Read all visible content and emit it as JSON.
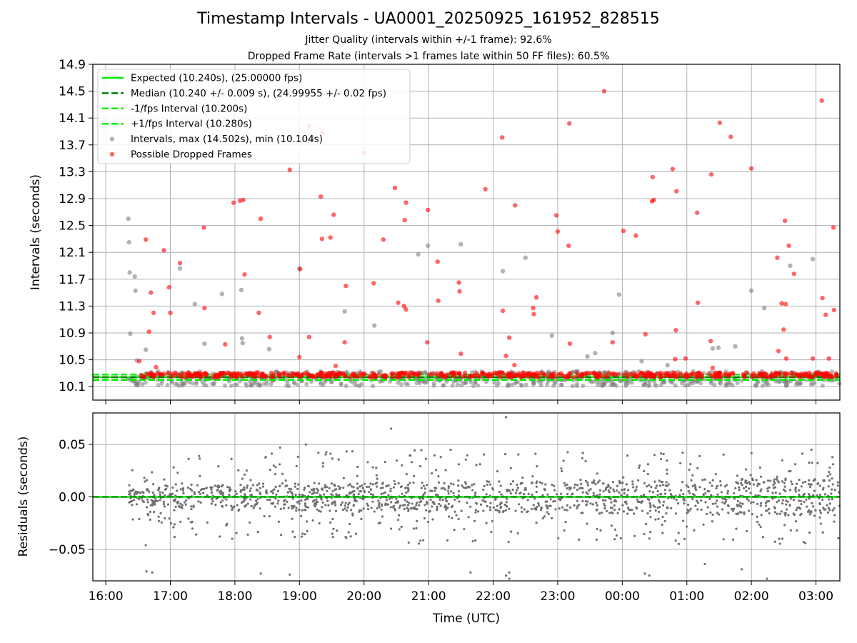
{
  "chart_data": [
    {
      "type": "scatter",
      "title": "Timestamp Intervals - UA0001_20250925_161952_828515",
      "subtitles": [
        "Jitter Quality (intervals within +/-1 frame): 92.6%",
        "Dropped Frame Rate (intervals >1 frames late within 50 FF files): 60.5%"
      ],
      "xlabel": "",
      "ylabel": "Intervals (seconds)",
      "xlim_hours": [
        15.8,
        27.37
      ],
      "ylim": [
        9.9,
        14.9
      ],
      "yticks": [
        "10.1",
        "10.5",
        "10.9",
        "11.3",
        "11.7",
        "12.1",
        "12.5",
        "12.9",
        "13.3",
        "13.7",
        "14.1",
        "14.5",
        "14.9"
      ],
      "grid": true,
      "legend_position": "top-left",
      "legend": [
        {
          "label": "Expected (10.240s), (25.00000 fps)",
          "style": "solid",
          "color": "#00ee00"
        },
        {
          "label": "Median (10.240 +/- 0.009 s), (24.99955 +/- 0.02 fps)",
          "style": "dashed",
          "color": "#007f00"
        },
        {
          "label": "-1/fps Interval (10.200s)",
          "style": "dashed",
          "color": "#00ee00"
        },
        {
          "label": "+1/fps Interval (10.280s)",
          "style": "dashed",
          "color": "#00ee00"
        },
        {
          "label": "Intervals, max (14.502s), min (10.104s)",
          "style": "marker",
          "color": "#808080"
        },
        {
          "label": "Possible Dropped Frames",
          "style": "marker",
          "color": "#ff0000"
        }
      ],
      "reference_lines": {
        "expected": 10.24,
        "median": 10.24,
        "minus_one": 10.2,
        "plus_one": 10.28
      },
      "series": [
        {
          "name": "Possible Dropped Frames",
          "color": "#ff0000",
          "x_hours": [
            16.52,
            16.62,
            16.67,
            16.7,
            16.74,
            16.78,
            16.9,
            16.98,
            17.0,
            17.15,
            17.52,
            17.53,
            17.85,
            17.98,
            18.03,
            18.08,
            18.13,
            18.15,
            18.37,
            18.4,
            18.54,
            18.85,
            19.0,
            19.01,
            19.15,
            19.15,
            19.33,
            19.35,
            19.35,
            19.48,
            19.53,
            19.56,
            19.7,
            19.72,
            20.0,
            20.15,
            20.3,
            20.48,
            20.53,
            20.62,
            20.63,
            20.65,
            20.65,
            20.98,
            20.99,
            21.14,
            21.15,
            21.47,
            21.48,
            21.5,
            21.88,
            22.14,
            22.15,
            22.2,
            22.25,
            22.33,
            22.34,
            22.62,
            22.63,
            22.67,
            22.98,
            23.0,
            23.17,
            23.18,
            23.19,
            23.72,
            23.85,
            24.02,
            24.21,
            24.36,
            24.46,
            24.47,
            24.49,
            24.78,
            24.82,
            24.83,
            24.84,
            24.98,
            25.16,
            25.17,
            25.37,
            25.38,
            25.4,
            25.51,
            25.68,
            26.0,
            26.4,
            26.42,
            26.47,
            26.5,
            26.52,
            26.53,
            26.54,
            26.58,
            26.66,
            26.95,
            27.09,
            27.1,
            27.15,
            27.2,
            27.27,
            27.28
          ],
          "y": [
            10.48,
            12.29,
            10.92,
            11.5,
            11.2,
            10.39,
            12.13,
            11.58,
            11.2,
            11.94,
            12.47,
            11.27,
            10.73,
            12.84,
            13.78,
            12.87,
            12.88,
            11.77,
            11.2,
            12.6,
            10.84,
            13.33,
            10.54,
            11.85,
            13.98,
            10.84,
            12.93,
            12.3,
            13.88,
            12.32,
            12.66,
            10.41,
            10.76,
            11.6,
            13.58,
            11.64,
            12.29,
            13.06,
            11.35,
            11.3,
            12.58,
            11.25,
            12.84,
            10.76,
            12.73,
            11.96,
            11.38,
            11.65,
            11.52,
            10.59,
            13.04,
            13.81,
            11.23,
            10.56,
            10.83,
            10.42,
            12.8,
            11.27,
            11.18,
            11.43,
            12.65,
            12.41,
            12.2,
            14.02,
            10.74,
            14.5,
            10.76,
            12.42,
            12.35,
            10.88,
            12.86,
            13.22,
            12.88,
            13.34,
            10.51,
            10.94,
            13.01,
            10.52,
            12.69,
            11.35,
            10.78,
            13.26,
            10.38,
            14.03,
            13.82,
            13.35,
            12.02,
            10.63,
            11.34,
            10.95,
            12.57,
            11.33,
            10.52,
            12.2,
            11.78,
            10.52,
            14.36,
            11.42,
            11.17,
            10.52,
            12.47,
            11.24
          ]
        },
        {
          "name": "Intervals, max (14.502s), min (10.104s)",
          "color": "#808080",
          "x_hours": [
            16.35,
            16.36,
            16.37,
            16.38,
            16.45,
            16.46,
            16.48,
            16.62,
            17.15,
            17.38,
            17.53,
            17.8,
            18.1,
            18.11,
            18.12,
            18.53,
            19.0,
            19.7,
            20.16,
            20.84,
            20.99,
            21.5,
            22.15,
            22.5,
            22.91,
            23.46,
            23.58,
            23.85,
            23.95,
            24.3,
            24.7,
            25.4,
            25.49,
            25.75,
            26.0,
            26.2,
            26.6,
            26.95
          ],
          "y": [
            12.6,
            12.25,
            11.8,
            10.89,
            11.74,
            11.53,
            10.49,
            10.65,
            11.86,
            11.33,
            10.74,
            11.48,
            11.54,
            10.82,
            10.75,
            10.66,
            11.86,
            11.22,
            11.01,
            12.07,
            12.2,
            12.22,
            11.82,
            12.02,
            10.86,
            10.55,
            10.6,
            10.9,
            11.47,
            10.48,
            10.42,
            10.67,
            10.68,
            10.7,
            11.53,
            11.27,
            11.9,
            12.0
          ]
        }
      ]
    },
    {
      "type": "scatter",
      "xlabel": "Time (UTC)",
      "ylabel": "Residuals (seconds)",
      "xlim_hours": [
        15.8,
        27.37
      ],
      "ylim": [
        -0.08,
        0.08
      ],
      "yticks": [
        "0.05",
        "0.00",
        "−0.05"
      ],
      "xticks": [
        "16:00",
        "17:00",
        "18:00",
        "19:00",
        "20:00",
        "21:00",
        "22:00",
        "23:00",
        "00:00",
        "01:00",
        "02:00",
        "03:00"
      ],
      "grid": true,
      "series": [
        {
          "name": "",
          "color": "#808080",
          "note_values": "residuals scattered around zero, mostly within +/-0.03 s, outliers up to 0.075 s",
          "x_hours": [
            16.62,
            16.72,
            16.63,
            18.4,
            18.85,
            21.65,
            22.2,
            22.25,
            22.25,
            24.35,
            24.42,
            25.28,
            25.85,
            26.24,
            20.42,
            22.2,
            19.1,
            18.7
          ],
          "y": [
            -0.046,
            -0.072,
            -0.071,
            -0.073,
            -0.074,
            -0.072,
            -0.075,
            -0.072,
            -0.078,
            -0.073,
            -0.075,
            -0.064,
            -0.069,
            -0.078,
            0.065,
            0.076,
            0.05,
            0.047
          ]
        }
      ]
    }
  ]
}
